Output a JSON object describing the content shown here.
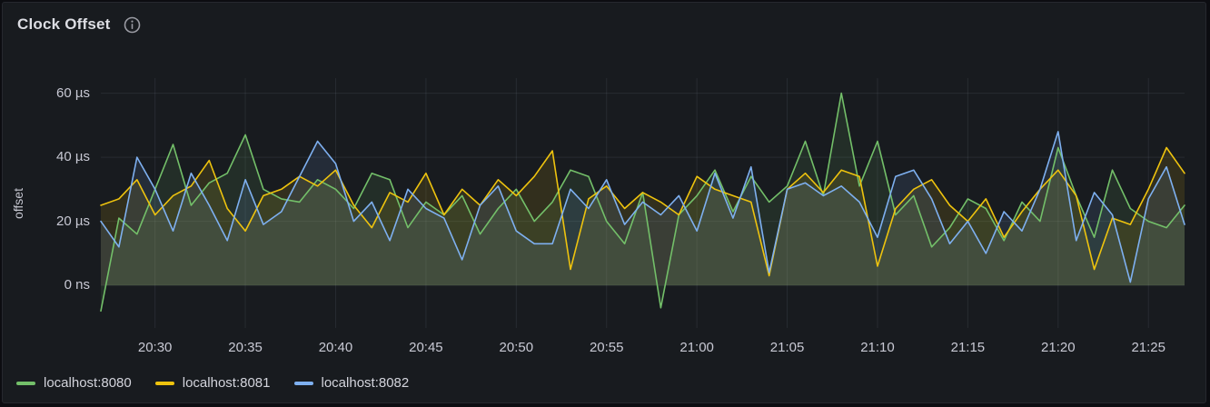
{
  "panel": {
    "title": "Clock Offset"
  },
  "chart_data": {
    "type": "line",
    "title": "Clock Offset",
    "xlabel": "",
    "ylabel": "offset",
    "unit": "time offset (ns/µs)",
    "grid": true,
    "legend_position": "bottom-left",
    "ylim": [
      -13.3,
      64.7
    ],
    "y_tick_labels": [
      "0 ns",
      "20 µs",
      "40 µs",
      "60 µs"
    ],
    "y_tick_values": [
      0,
      20,
      40,
      60
    ],
    "x": [
      "20:27",
      "20:28",
      "20:29",
      "20:30",
      "20:31",
      "20:32",
      "20:33",
      "20:34",
      "20:35",
      "20:36",
      "20:37",
      "20:38",
      "20:39",
      "20:40",
      "20:41",
      "20:42",
      "20:43",
      "20:44",
      "20:45",
      "20:46",
      "20:47",
      "20:48",
      "20:49",
      "20:50",
      "20:51",
      "20:52",
      "20:53",
      "20:54",
      "20:55",
      "20:56",
      "20:57",
      "20:58",
      "20:59",
      "21:00",
      "21:01",
      "21:02",
      "21:03",
      "21:04",
      "21:05",
      "21:06",
      "21:07",
      "21:08",
      "21:09",
      "21:10",
      "21:11",
      "21:12",
      "21:13",
      "21:14",
      "21:15",
      "21:16",
      "21:17",
      "21:18",
      "21:19",
      "21:20",
      "21:21",
      "21:22",
      "21:23",
      "21:24",
      "21:25",
      "21:26",
      "21:27"
    ],
    "x_tick_labels": [
      "20:30",
      "20:35",
      "20:40",
      "20:45",
      "20:50",
      "20:55",
      "21:00",
      "21:05",
      "21:10",
      "21:15",
      "21:20",
      "21:25"
    ],
    "x_unit": "time (HH:MM)",
    "values_unit": "µs",
    "series": [
      {
        "name": "localhost:8080",
        "color": "#73BF69",
        "values": [
          -8,
          21,
          16,
          30,
          44,
          25,
          32,
          35,
          47,
          30,
          27,
          26,
          33,
          30,
          24,
          35,
          33,
          18,
          26,
          22,
          28,
          16,
          24,
          30,
          20,
          26,
          36,
          34,
          20,
          13,
          29,
          -7,
          22,
          28,
          36,
          23,
          34,
          26,
          31,
          45,
          28,
          60,
          31,
          45,
          22,
          28,
          12,
          18,
          27,
          24,
          14,
          26,
          20,
          43,
          28,
          15,
          36,
          24,
          20,
          18,
          25
        ]
      },
      {
        "name": "localhost:8081",
        "color": "#EEC30E",
        "values": [
          25,
          27,
          33,
          22,
          28,
          31,
          39,
          24,
          17,
          28,
          30,
          34,
          31,
          36,
          25,
          18,
          29,
          26,
          35,
          22,
          30,
          25,
          33,
          28,
          34,
          42,
          5,
          27,
          31,
          24,
          29,
          26,
          22,
          34,
          30,
          28,
          26,
          3,
          30,
          35,
          29,
          36,
          34,
          6,
          24,
          30,
          33,
          25,
          20,
          27,
          15,
          23,
          30,
          36,
          28,
          5,
          21,
          19,
          30,
          43,
          35
        ]
      },
      {
        "name": "localhost:8082",
        "color": "#7EB0F0",
        "values": [
          20,
          12,
          40,
          30,
          17,
          35,
          25,
          14,
          33,
          19,
          23,
          34,
          45,
          38,
          20,
          26,
          14,
          30,
          24,
          21,
          8,
          25,
          31,
          17,
          13,
          13,
          30,
          24,
          33,
          19,
          26,
          22,
          28,
          17,
          35,
          21,
          37,
          4,
          30,
          32,
          28,
          31,
          26,
          15,
          34,
          36,
          27,
          13,
          20,
          10,
          23,
          17,
          30,
          48,
          14,
          29,
          22,
          1,
          27,
          37,
          19
        ]
      }
    ],
    "style": {
      "grid_color": "rgba(205,215,235,0.09)",
      "fill_opacity": 0.12,
      "line_width": 1.6,
      "panel_bg": "#181b1f",
      "page_bg": "#0c0d11"
    }
  }
}
